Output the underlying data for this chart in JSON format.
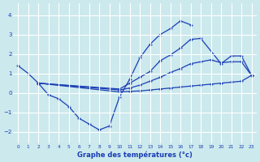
{
  "background_color": "#cce9ed",
  "line_color": "#1a3eb5",
  "grid_color": "#b8d8dc",
  "xlabel": "Graphe des températures (°c)",
  "xlim": [
    -0.5,
    23.5
  ],
  "ylim": [
    -2.6,
    4.6
  ],
  "yticks": [
    -2,
    -1,
    0,
    1,
    2,
    3,
    4
  ],
  "xticks": [
    0,
    1,
    2,
    3,
    4,
    5,
    6,
    7,
    8,
    9,
    10,
    11,
    12,
    13,
    14,
    15,
    16,
    17,
    18,
    19,
    20,
    21,
    22,
    23
  ],
  "s1_x": [
    0,
    1,
    2,
    3,
    4,
    5,
    6,
    7,
    8,
    9,
    10,
    11,
    12,
    13,
    14,
    15,
    16,
    17
  ],
  "s1_y": [
    1.4,
    1.0,
    0.5,
    -0.1,
    -0.3,
    -0.7,
    -1.3,
    -1.6,
    -1.9,
    -1.7,
    -0.2,
    0.7,
    1.8,
    2.5,
    3.0,
    3.3,
    3.7,
    3.5
  ],
  "s2_x": [
    2,
    10,
    11,
    12,
    13,
    14,
    15,
    16,
    17,
    18,
    20,
    21,
    22,
    23
  ],
  "s2_y": [
    0.5,
    0.2,
    0.5,
    0.8,
    1.1,
    1.65,
    1.95,
    2.3,
    2.75,
    2.8,
    1.5,
    1.9,
    1.9,
    0.9
  ],
  "s3_x": [
    2,
    10,
    11,
    12,
    13,
    14,
    15,
    16,
    17,
    18,
    19,
    20,
    21,
    22,
    23
  ],
  "s3_y": [
    0.5,
    0.15,
    0.25,
    0.4,
    0.6,
    0.8,
    1.05,
    1.25,
    1.5,
    1.6,
    1.7,
    1.55,
    1.6,
    1.6,
    0.9
  ],
  "s4_x": [
    2,
    10,
    11,
    12,
    13,
    14,
    15,
    16,
    17,
    18,
    19,
    20,
    21,
    22,
    23
  ],
  "s4_y": [
    0.5,
    0.05,
    0.08,
    0.1,
    0.15,
    0.2,
    0.25,
    0.3,
    0.35,
    0.4,
    0.45,
    0.5,
    0.55,
    0.6,
    0.9
  ]
}
